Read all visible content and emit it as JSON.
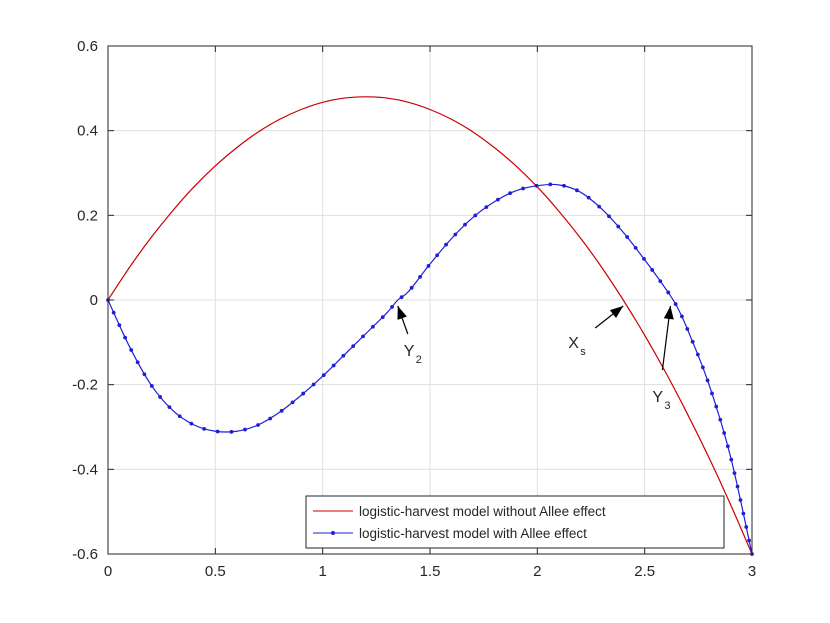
{
  "chart_data": {
    "type": "line",
    "title": "",
    "xlabel": "",
    "ylabel": "",
    "xlim": [
      0,
      3
    ],
    "ylim": [
      -0.6,
      0.6
    ],
    "xticks": [
      0,
      0.5,
      1,
      1.5,
      2,
      2.5,
      3
    ],
    "yticks": [
      -0.6,
      -0.4,
      -0.2,
      0,
      0.2,
      0.4,
      0.6
    ],
    "xtick_labels": [
      "0",
      "0.5",
      "1",
      "1.5",
      "2",
      "2.5",
      "3"
    ],
    "ytick_labels": [
      "-0.6",
      "-0.4",
      "-0.2",
      "0",
      "0.2",
      "0.4",
      "0.6"
    ],
    "grid": true,
    "legend_position": "bottom-right",
    "series": [
      {
        "name": "logistic-harvest model without Allee effect",
        "color": "#cc0000",
        "marker": "none",
        "x": [
          0,
          0.1,
          0.2,
          0.3,
          0.4,
          0.5,
          0.6,
          0.7,
          0.8,
          0.9,
          1.0,
          1.1,
          1.2,
          1.3,
          1.4,
          1.5,
          1.6,
          1.7,
          1.8,
          1.9,
          2.0,
          2.1,
          2.2,
          2.3,
          2.4,
          2.5,
          2.6,
          2.7,
          2.8,
          2.9,
          3.0
        ],
        "y": [
          0,
          0.077,
          0.147,
          0.21,
          0.267,
          0.317,
          0.36,
          0.397,
          0.427,
          0.45,
          0.467,
          0.477,
          0.48,
          0.477,
          0.467,
          0.45,
          0.427,
          0.397,
          0.36,
          0.317,
          0.267,
          0.21,
          0.147,
          0.077,
          0,
          -0.083,
          -0.173,
          -0.27,
          -0.373,
          -0.483,
          -0.6
        ]
      },
      {
        "name": "logistic-harvest model with Allee effect",
        "color": "#1f1fd6",
        "marker": "dot",
        "x": [
          0,
          0.1,
          0.2,
          0.3,
          0.4,
          0.5,
          0.6,
          0.7,
          0.8,
          0.9,
          1.0,
          1.1,
          1.2,
          1.3,
          1.35,
          1.4,
          1.5,
          1.6,
          1.7,
          1.8,
          1.9,
          2.0,
          2.1,
          2.2,
          2.3,
          2.4,
          2.5,
          2.6,
          2.65,
          2.7,
          2.8,
          2.9,
          3.0
        ],
        "y": [
          0,
          -0.11,
          -0.2,
          -0.26,
          -0.295,
          -0.31,
          -0.31,
          -0.295,
          -0.265,
          -0.225,
          -0.18,
          -0.13,
          -0.08,
          -0.03,
          0,
          0.02,
          0.085,
          0.145,
          0.195,
          0.232,
          0.258,
          0.27,
          0.272,
          0.255,
          0.215,
          0.16,
          0.095,
          0.025,
          -0.015,
          -0.07,
          -0.2,
          -0.37,
          -0.6
        ]
      }
    ],
    "annotations": [
      {
        "label": "Y",
        "subscript": "2",
        "target_x": 1.35,
        "target_y": 0
      },
      {
        "label": "X",
        "subscript": "s",
        "target_x": 2.4,
        "target_y": 0
      },
      {
        "label": "Y",
        "subscript": "3",
        "target_x": 2.62,
        "target_y": 0
      }
    ]
  }
}
